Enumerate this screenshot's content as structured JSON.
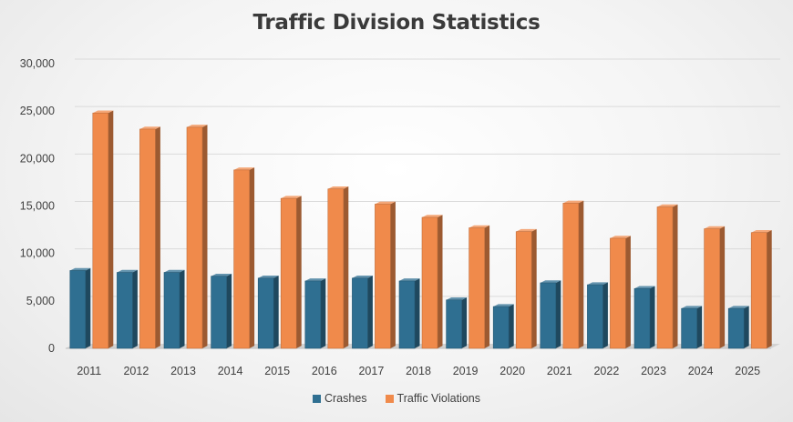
{
  "chart_data": {
    "type": "bar",
    "title": "Traffic Division Statistics",
    "xlabel": "",
    "ylabel": "",
    "categories": [
      "2011",
      "2012",
      "2013",
      "2014",
      "2015",
      "2016",
      "2017",
      "2018",
      "2019",
      "2020",
      "2021",
      "2022",
      "2023",
      "2024",
      "2025"
    ],
    "series": [
      {
        "name": "Crashes",
        "color": "#2f6f91",
        "values": [
          8200,
          8000,
          8000,
          7600,
          7400,
          7100,
          7400,
          7100,
          5100,
          4400,
          6900,
          6700,
          6300,
          4200,
          4200
        ]
      },
      {
        "name": "Traffic Violations",
        "color": "#f08a4b",
        "values": [
          24800,
          23100,
          23300,
          18800,
          15800,
          16800,
          15200,
          13800,
          12700,
          12300,
          15300,
          11600,
          14900,
          12600,
          12200
        ]
      }
    ],
    "ylim": [
      0,
      30000
    ],
    "yticks": [
      "0",
      "5,000",
      "10,000",
      "15,000",
      "20,000",
      "25,000",
      "30,000"
    ],
    "ytick_values": [
      0,
      5000,
      10000,
      15000,
      20000,
      25000,
      30000
    ],
    "grid": true,
    "legend": "bottom"
  }
}
